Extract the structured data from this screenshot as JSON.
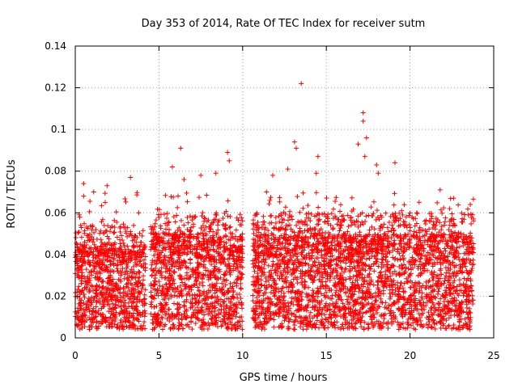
{
  "chart_data": {
    "type": "scatter",
    "title": "Day 353 of 2014, Rate Of TEC Index for receiver sutm",
    "xlabel": "GPS time / hours",
    "ylabel": "ROTI / TECUs",
    "xlim": [
      0,
      25
    ],
    "ylim": [
      0,
      0.14
    ],
    "x_ticks": [
      "0",
      "5",
      "10",
      "15",
      "20",
      "25"
    ],
    "y_ticks": [
      "0",
      "0.02",
      "0.04",
      "0.06",
      "0.08",
      "0.1",
      "0.12",
      "0.14"
    ],
    "grid": true,
    "marker": "plus",
    "color": "#ff0000",
    "data_segments": [
      {
        "x_start": 0.0,
        "x_end": 4.2,
        "typical_max": 0.045
      },
      {
        "x_start": 4.5,
        "x_end": 10.0,
        "typical_max": 0.05
      },
      {
        "x_start": 10.6,
        "x_end": 23.8,
        "typical_max": 0.05
      }
    ],
    "notable_points": [
      {
        "x": 0.5,
        "y": 0.074
      },
      {
        "x": 0.5,
        "y": 0.068
      },
      {
        "x": 1.1,
        "y": 0.07
      },
      {
        "x": 1.9,
        "y": 0.073
      },
      {
        "x": 3.3,
        "y": 0.077
      },
      {
        "x": 5.8,
        "y": 0.082
      },
      {
        "x": 6.3,
        "y": 0.091
      },
      {
        "x": 6.5,
        "y": 0.076
      },
      {
        "x": 7.5,
        "y": 0.078
      },
      {
        "x": 8.4,
        "y": 0.079
      },
      {
        "x": 9.1,
        "y": 0.089
      },
      {
        "x": 9.2,
        "y": 0.085
      },
      {
        "x": 11.8,
        "y": 0.078
      },
      {
        "x": 12.7,
        "y": 0.081
      },
      {
        "x": 13.1,
        "y": 0.094
      },
      {
        "x": 13.2,
        "y": 0.091
      },
      {
        "x": 13.5,
        "y": 0.122
      },
      {
        "x": 14.4,
        "y": 0.079
      },
      {
        "x": 14.5,
        "y": 0.087
      },
      {
        "x": 16.9,
        "y": 0.093
      },
      {
        "x": 17.2,
        "y": 0.108
      },
      {
        "x": 17.2,
        "y": 0.104
      },
      {
        "x": 17.4,
        "y": 0.096
      },
      {
        "x": 17.3,
        "y": 0.087
      },
      {
        "x": 18.0,
        "y": 0.083
      },
      {
        "x": 18.1,
        "y": 0.079
      },
      {
        "x": 19.1,
        "y": 0.084
      },
      {
        "x": 21.8,
        "y": 0.071
      },
      {
        "x": 22.6,
        "y": 0.067
      },
      {
        "x": 23.6,
        "y": 0.064
      }
    ]
  }
}
